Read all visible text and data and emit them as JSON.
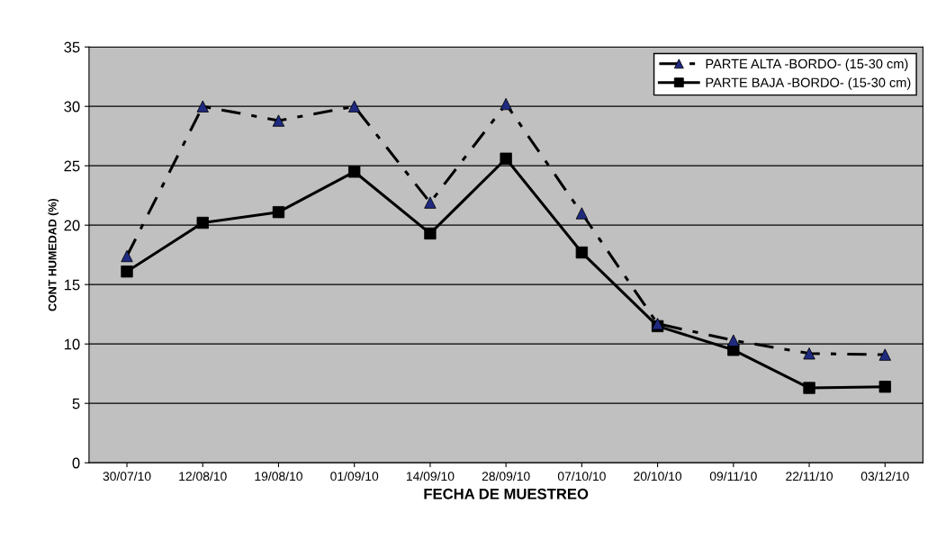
{
  "chart_data": {
    "type": "line",
    "xlabel": "FECHA DE MUESTREO",
    "ylabel": "CONT HUMEDAD (%)",
    "categories": [
      "30/07/10",
      "12/08/10",
      "19/08/10",
      "01/09/10",
      "14/09/10",
      "28/09/10",
      "07/10/10",
      "20/10/10",
      "09/11/10",
      "22/11/10",
      "03/12/10"
    ],
    "series": [
      {
        "name": "PARTE ALTA -BORDO- (15-30 cm)",
        "color": "#1f2a80",
        "marker": "triangle",
        "line_style": "dashed",
        "values": [
          17.4,
          30.0,
          28.8,
          30.0,
          21.9,
          30.2,
          21.0,
          11.7,
          10.3,
          9.2,
          9.1
        ]
      },
      {
        "name": "PARTE BAJA -BORDO- (15-30 cm)",
        "color": "#000000",
        "marker": "square",
        "line_style": "solid",
        "values": [
          16.1,
          20.2,
          21.1,
          24.5,
          19.3,
          25.6,
          17.7,
          11.5,
          9.5,
          6.3,
          6.4
        ]
      }
    ],
    "ylim": [
      0,
      35
    ],
    "yticks": [
      0,
      5,
      10,
      15,
      20,
      25,
      30,
      35
    ],
    "grid": "y",
    "legend": "top right"
  }
}
